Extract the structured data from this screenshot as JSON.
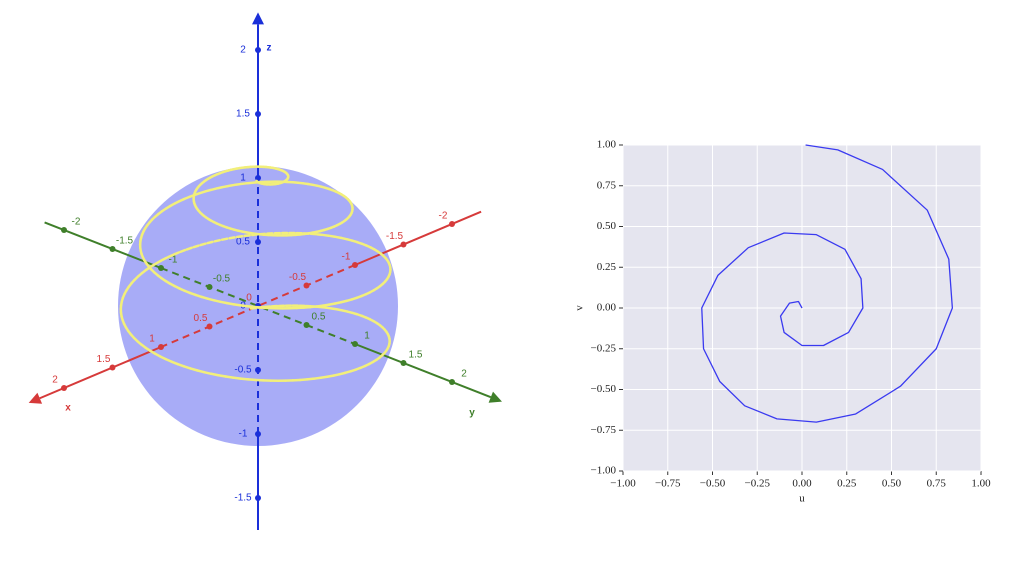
{
  "chart_data": [
    {
      "type": "sphere3d",
      "xlabel": "x",
      "ylabel": "y",
      "zlabel": "z",
      "xticks": [
        -2,
        -1.5,
        -1,
        -0.5,
        0,
        0.5,
        1,
        1.5,
        2
      ],
      "yticks": [
        -2,
        -1.5,
        -1,
        -0.5,
        0.5,
        1,
        1.5,
        2
      ],
      "zticks": [
        -1.5,
        -1,
        -0.5,
        0,
        0.5,
        1,
        1.5,
        2
      ],
      "xcolor": "#d63a3a",
      "ycolor": "#3f7f2a",
      "zcolor": "#1a2fd9",
      "sphere_color": "#a3a8f7",
      "curve_color": "#f2ef7a"
    },
    {
      "type": "line",
      "xlabel": "u",
      "ylabel": "v",
      "xlim": [
        -1,
        1
      ],
      "ylim": [
        -1,
        1
      ],
      "xticks": [
        {
          "value": -1,
          "label": "−1.00"
        },
        {
          "value": -0.75,
          "label": "−0.75"
        },
        {
          "value": -0.5,
          "label": "−0.50"
        },
        {
          "value": -0.25,
          "label": "−0.25"
        },
        {
          "value": 0,
          "label": "0.00"
        },
        {
          "value": 0.25,
          "label": "0.25"
        },
        {
          "value": 0.5,
          "label": "0.50"
        },
        {
          "value": 0.75,
          "label": "0.75"
        },
        {
          "value": 1,
          "label": "1.00"
        }
      ],
      "yticks": [
        {
          "value": -1,
          "label": "−1.00"
        },
        {
          "value": -0.75,
          "label": "−0.75"
        },
        {
          "value": -0.5,
          "label": "−0.50"
        },
        {
          "value": -0.25,
          "label": "−0.25"
        },
        {
          "value": 0,
          "label": "0.00"
        },
        {
          "value": 0.25,
          "label": "0.25"
        },
        {
          "value": 0.5,
          "label": "0.50"
        },
        {
          "value": 0.75,
          "label": "0.75"
        },
        {
          "value": 1,
          "label": "1.00"
        }
      ],
      "grid": true,
      "series": [
        {
          "color": "#3a3af0",
          "x": [
            0.0,
            -0.02,
            -0.07,
            -0.12,
            -0.1,
            0.0,
            0.12,
            0.26,
            0.34,
            0.33,
            0.24,
            0.08,
            -0.1,
            -0.3,
            -0.47,
            -0.56,
            -0.55,
            -0.46,
            -0.32,
            -0.14,
            0.08,
            0.3,
            0.55,
            0.75,
            0.84,
            0.82,
            0.7,
            0.45,
            0.2,
            0.02
          ],
          "values": [
            0.0,
            0.04,
            0.03,
            -0.05,
            -0.15,
            -0.23,
            -0.23,
            -0.15,
            0.0,
            0.18,
            0.36,
            0.45,
            0.46,
            0.37,
            0.2,
            0.0,
            -0.25,
            -0.45,
            -0.6,
            -0.68,
            -0.7,
            -0.65,
            -0.48,
            -0.25,
            0.0,
            0.3,
            0.6,
            0.85,
            0.97,
            1.0
          ]
        }
      ]
    }
  ]
}
